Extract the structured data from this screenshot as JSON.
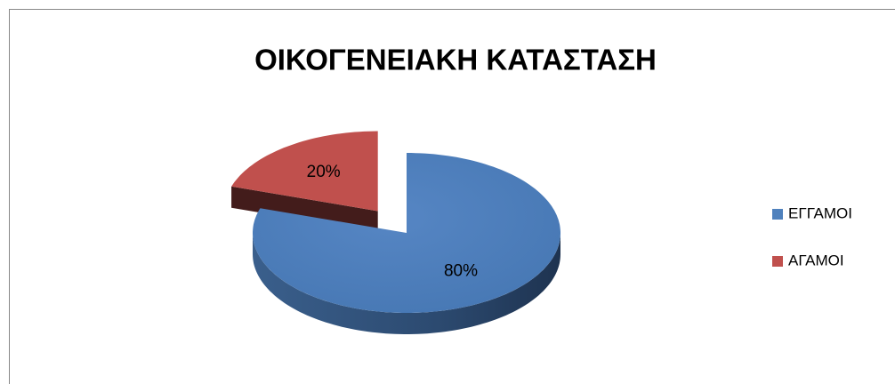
{
  "chart_data": {
    "type": "pie",
    "title": "ΟΙΚΟΓΕΝΕΙΑΚΗ ΚΑΤΑΣΤΑΣΗ",
    "categories": [
      "ΕΓΓΑΜΟΙ",
      "ΑΓΑΜΟΙ"
    ],
    "values": [
      80,
      20
    ],
    "value_labels": [
      "80%",
      "20%"
    ],
    "colors": [
      "#4f81bd",
      "#c0504d"
    ],
    "legend": "right"
  }
}
